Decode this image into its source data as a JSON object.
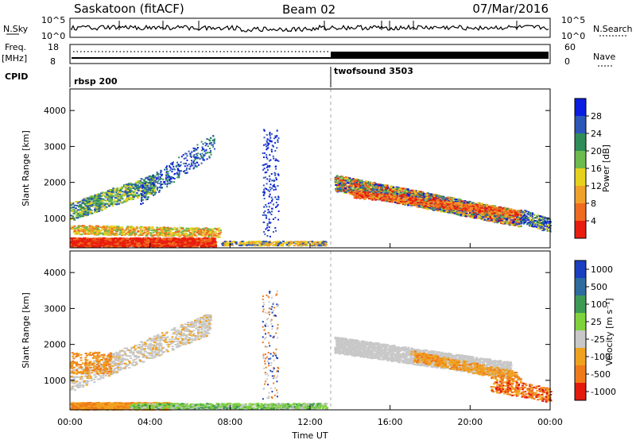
{
  "header": {
    "title": "Saskatoon (fitACF)",
    "beam": "Beam 02",
    "date": "07/Mar/2016"
  },
  "top_panels": {
    "nsky_label": "N.Sky",
    "nsearch_label": "N.Search",
    "nsky_ticks": [
      "10^5",
      "10^0"
    ],
    "nsearch_ticks": [
      "10^5",
      "10^0"
    ],
    "freq_label": "Freq.",
    "freq_unit": "[MHz]",
    "freq_ticks": [
      "18",
      "8"
    ],
    "nave_label": "Nave",
    "nave_ticks": [
      "60",
      "0"
    ],
    "cpid_label": "CPID",
    "cpid_segments": [
      {
        "name": "rbsp 200",
        "start_hour": 0
      },
      {
        "name": "twofsound 3503",
        "start_hour": 13
      }
    ]
  },
  "chart_data": [
    {
      "type": "heatmap",
      "name": "power",
      "ylabel": "Slant Range [km]",
      "yticks": [
        1000,
        2000,
        3000,
        4000
      ],
      "ylim": [
        180,
        4600
      ],
      "xlim": [
        0,
        24
      ],
      "colorbar": {
        "label": "Power [dB]",
        "ticks": [
          4,
          8,
          12,
          16,
          20,
          24,
          28
        ],
        "colors": [
          "#0b1de0",
          "#2c56b8",
          "#2f8d57",
          "#6dbb4d",
          "#e6d21d",
          "#f0a12b",
          "#ef6b1f",
          "#e81d0f"
        ]
      }
    },
    {
      "type": "heatmap",
      "name": "velocity",
      "ylabel": "Slant Range [km]",
      "yticks": [
        1000,
        2000,
        3000,
        4000
      ],
      "ylim": [
        180,
        4600
      ],
      "xlim": [
        0,
        24
      ],
      "xlabel": "Time UT",
      "xticks": [
        "00:00",
        "04:00",
        "08:00",
        "12:00",
        "16:00",
        "20:00",
        "00:00"
      ],
      "colorbar": {
        "label": "Velocity [m s⁻¹]",
        "ticks": [
          "1000",
          "500",
          "100",
          "25",
          "-25",
          "-100",
          "-500",
          "-1000"
        ],
        "colors": [
          "#1a3fbf",
          "#2d6c9e",
          "#3d9a55",
          "#7ed23b",
          "#c8c8c8",
          "#f0a21e",
          "#ef7a1a",
          "#e31a0c"
        ]
      }
    }
  ]
}
